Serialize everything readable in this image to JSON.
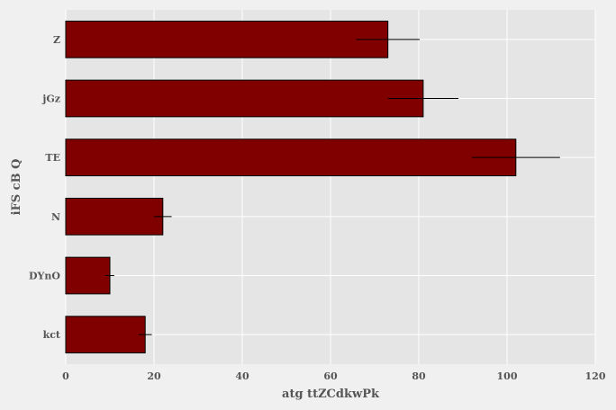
{
  "chart_data": {
    "type": "bar",
    "orientation": "horizontal",
    "title": "",
    "xlabel": "atg ttZCdkwPk",
    "ylabel": "iFS cB Q",
    "xlim": [
      0,
      120
    ],
    "xticks": [
      0,
      20,
      40,
      60,
      80,
      100,
      120
    ],
    "grid": true,
    "colors": {
      "bar": "#800000",
      "background": "#e5e5e5",
      "figure": "#f0f0f0",
      "grid": "#ffffff"
    },
    "categories": [
      "Z",
      "jGz",
      "TE",
      "N",
      "DYnO",
      "kct"
    ],
    "values": [
      73,
      81,
      102,
      22,
      10,
      18
    ],
    "errors": [
      7.2,
      8,
      10,
      2,
      1,
      1.5
    ]
  }
}
